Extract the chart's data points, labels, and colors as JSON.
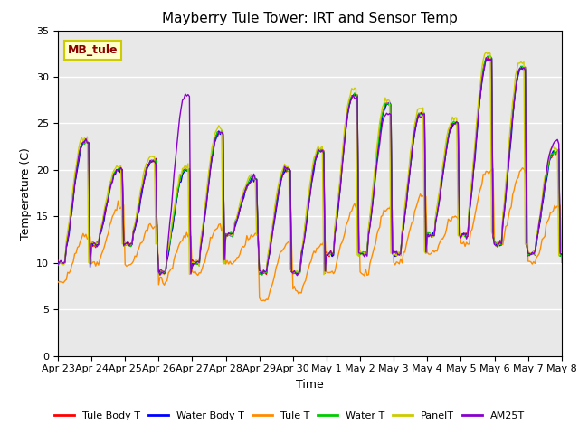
{
  "title": "Mayberry Tule Tower: IRT and Sensor Temp",
  "xlabel": "Time",
  "ylabel": "Temperature (C)",
  "ylim": [
    0,
    35
  ],
  "yticks": [
    0,
    5,
    10,
    15,
    20,
    25,
    30,
    35
  ],
  "xlabels": [
    "Apr 23",
    "Apr 24",
    "Apr 25",
    "Apr 26",
    "Apr 27",
    "Apr 28",
    "Apr 29",
    "Apr 30",
    "May 1",
    "May 2",
    "May 3",
    "May 4",
    "May 5",
    "May 6",
    "May 7",
    "May 8"
  ],
  "annotation_text": "MB_tule",
  "annotation_color": "#8B0000",
  "annotation_bg": "#FFFFCC",
  "annotation_border": "#CCCC00",
  "series_colors": {
    "Tule Body T": "#FF0000",
    "Water Body T": "#0000FF",
    "Tule T": "#FF8C00",
    "Water T": "#00CC00",
    "PanelT": "#CCCC00",
    "AM25T": "#8800CC"
  },
  "background_color": "#E8E8E8",
  "grid_color": "#FFFFFF",
  "title_fontsize": 11,
  "axis_fontsize": 9,
  "tick_fontsize": 8,
  "legend_fontsize": 8
}
